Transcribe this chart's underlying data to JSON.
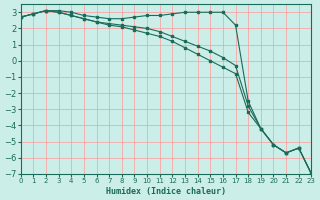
{
  "xlabel": "Humidex (Indice chaleur)",
  "ylabel": "",
  "bg_color": "#cceee8",
  "grid_color": "#ff9999",
  "line_color": "#1a6b5a",
  "xlim": [
    0,
    23
  ],
  "ylim": [
    -7,
    3.5
  ],
  "yticks": [
    3,
    2,
    1,
    0,
    -1,
    -2,
    -3,
    -4,
    -5,
    -6,
    -7
  ],
  "xticks": [
    0,
    1,
    2,
    3,
    4,
    5,
    6,
    7,
    8,
    9,
    10,
    11,
    12,
    13,
    14,
    15,
    16,
    17,
    18,
    19,
    20,
    21,
    22,
    23
  ],
  "series1_x": [
    0,
    1,
    2,
    3,
    4,
    5,
    6,
    7,
    8,
    9,
    10,
    11,
    12,
    13,
    14,
    15,
    16,
    17,
    18,
    19,
    20,
    21,
    22,
    23
  ],
  "series1_y": [
    2.7,
    2.9,
    3.1,
    3.1,
    3.0,
    2.8,
    2.7,
    2.6,
    2.6,
    2.7,
    2.8,
    2.8,
    2.9,
    3.0,
    3.0,
    3.0,
    3.0,
    2.2,
    -2.5,
    -4.2,
    -5.2,
    -5.7,
    -5.4,
    -7.0
  ],
  "series2_x": [
    0,
    1,
    2,
    3,
    4,
    5,
    6,
    7,
    8,
    9,
    10,
    11,
    12,
    13,
    14,
    15,
    16,
    17,
    18,
    19,
    20,
    21,
    22,
    23
  ],
  "series2_y": [
    2.7,
    2.9,
    3.1,
    3.0,
    2.8,
    2.6,
    2.4,
    2.3,
    2.2,
    2.1,
    2.0,
    1.8,
    1.5,
    1.2,
    0.9,
    0.6,
    0.2,
    -0.3,
    -2.8,
    -4.2,
    -5.2,
    -5.7,
    -5.4,
    -7.0
  ],
  "series3_x": [
    0,
    1,
    2,
    3,
    4,
    5,
    6,
    7,
    8,
    9,
    10,
    11,
    12,
    13,
    14,
    15,
    16,
    17,
    18,
    19,
    20,
    21,
    22,
    23
  ],
  "series3_y": [
    2.7,
    2.9,
    3.1,
    3.0,
    2.8,
    2.6,
    2.4,
    2.2,
    2.1,
    1.9,
    1.7,
    1.5,
    1.2,
    0.8,
    0.4,
    0.0,
    -0.4,
    -0.8,
    -3.2,
    -4.2,
    -5.2,
    -5.7,
    -5.4,
    -7.0
  ]
}
